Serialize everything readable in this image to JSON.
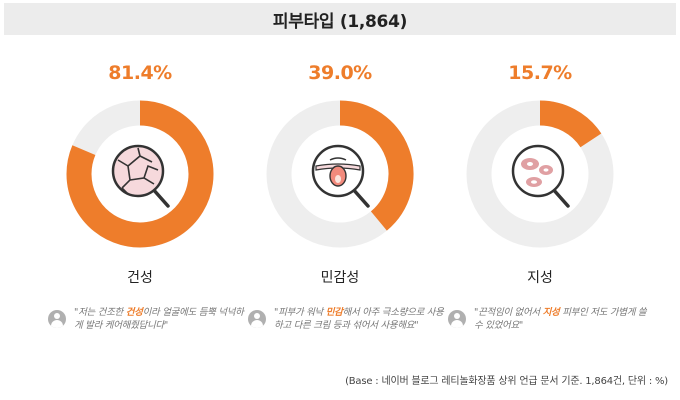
{
  "header": {
    "title": "피부타입 (1,864)"
  },
  "chart_data": {
    "type": "pie",
    "title": "피부타입 (1,864)",
    "categories": [
      "건성",
      "민감성",
      "지성"
    ],
    "values": [
      81.4,
      39.0,
      15.7
    ],
    "value_labels": [
      "81.4%",
      "39.0%",
      "15.7%"
    ],
    "note": "(Base : 네이버 블로그 레티놀화장품 상위 언급 문서 기준. 1,864건, 단위 : %)"
  },
  "panels": [
    {
      "pct": "81.4%",
      "label": "건성",
      "icon": "cracked-skin-icon",
      "quote_pre": "\"저는 건조한 ",
      "quote_hl": "건성",
      "quote_post": "이라 얼굴에도 듬뿍 넉넉하게 발라 케어해줬답니다\""
    },
    {
      "pct": "39.0%",
      "label": "민감성",
      "icon": "sensitive-skin-icon",
      "quote_pre": "\"피부가 워낙 ",
      "quote_hl": "민감",
      "quote_post": "해서 아주 극소량으로 사용하고 다른 크림 등과 섞어서 사용해요\""
    },
    {
      "pct": "15.7%",
      "label": "지성",
      "icon": "oily-skin-icon",
      "quote_pre": "\"끈적임이 없어서 ",
      "quote_hl": "지성",
      "quote_post": " 피부인 저도 가볍게 쓸 수 있었어요\""
    }
  ],
  "colors": {
    "accent": "#ee7d2b",
    "track": "#eeeeee",
    "pinkSkin": "#f6d9dc",
    "darkLine": "#333333"
  },
  "footer": {
    "base": "(Base : 네이버 블로그 레티놀화장품 상위 언급 문서 기준. 1,864건, 단위 : %)"
  }
}
